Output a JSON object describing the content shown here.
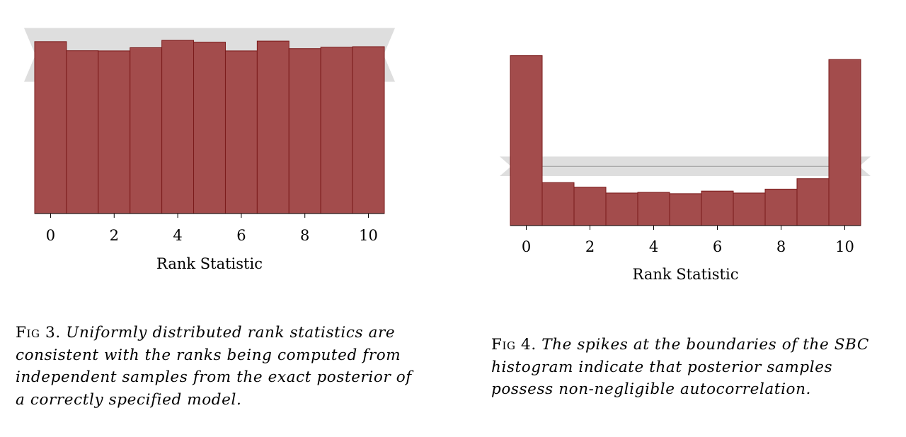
{
  "chart_data": [
    {
      "type": "bar",
      "categories": [
        0,
        1,
        2,
        3,
        4,
        5,
        6,
        7,
        8,
        9,
        10
      ],
      "values": [
        0.0985,
        0.0933,
        0.0932,
        0.095,
        0.0992,
        0.0982,
        0.0932,
        0.0988,
        0.0945,
        0.0953,
        0.0956
      ],
      "xticks": [
        "0",
        "2",
        "4",
        "6",
        "8",
        "10"
      ],
      "xtick_values": [
        0,
        2,
        4,
        6,
        8,
        10
      ],
      "xlabel": "Rank Statistic",
      "ylabel": "",
      "ylim": [
        0,
        0.1033
      ],
      "expected": 0.0909,
      "band": [
        0.0755,
        0.1063
      ],
      "bar_color": "#a34c4c",
      "bar_edge_color": "#7a1a1a",
      "band_color": "#dedede"
    },
    {
      "type": "bar",
      "categories": [
        0,
        1,
        2,
        3,
        4,
        5,
        6,
        7,
        8,
        9,
        10
      ],
      "values": [
        0.261,
        0.066,
        0.059,
        0.05,
        0.051,
        0.049,
        0.053,
        0.05,
        0.056,
        0.072,
        0.255
      ],
      "xticks": [
        "0",
        "2",
        "4",
        "6",
        "8",
        "10"
      ],
      "xtick_values": [
        0,
        2,
        4,
        6,
        8,
        10
      ],
      "xlabel": "Rank Statistic",
      "ylabel": "",
      "ylim": [
        0,
        0.278
      ],
      "expected": 0.0909,
      "band": [
        0.076,
        0.106
      ],
      "bar_color": "#a34c4c",
      "bar_edge_color": "#7a1a1a",
      "band_color": "#dedede"
    }
  ],
  "captions": [
    {
      "label": "Fig 3.",
      "text": "Uniformly distributed rank statistics are consistent with the ranks being computed from independent samples from the exact posterior of a correctly specified model."
    },
    {
      "label": "Fig 4.",
      "text": "The spikes at the boundaries of the SBC histogram indicate that posterior samples possess non-negligible autocorrelation."
    }
  ]
}
